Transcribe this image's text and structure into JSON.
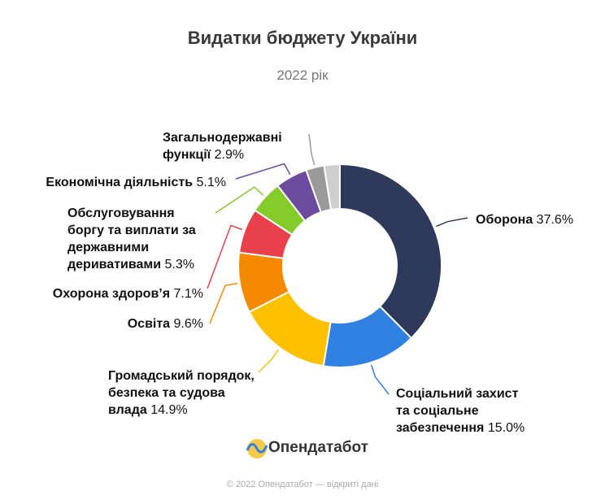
{
  "title": "Видатки бюджету України",
  "subtitle": "2022 рік",
  "chart_data": {
    "type": "donut",
    "categories": [
      "Оборона",
      "Соціальний захист та соціальне забезпечення",
      "Громадський порядок, безпека та судова влада",
      "Освіта",
      "Охорона здоров’я",
      "Обслуговування боргу та виплати за державними деривативами",
      "Економічна діяльність",
      "Загальнодержавні функції",
      null
    ],
    "values": [
      37.6,
      15.0,
      14.9,
      9.6,
      7.1,
      5.3,
      5.1,
      2.9,
      2.5
    ],
    "value_labels": [
      "37.6%",
      "15.0%",
      "14.9%",
      "9.6%",
      "7.1%",
      "5.3%",
      "5.1%",
      "2.9%",
      null
    ],
    "colors": [
      "#2e3a5c",
      "#2f80e0",
      "#ffc000",
      "#f58a00",
      "#e8414b",
      "#84cc29",
      "#6c4a9e",
      "#9a9a9a",
      "#cfcfcf"
    ]
  },
  "logo": "Опендатабот",
  "footer": "© 2022 Опендатабот — відкриті дані"
}
